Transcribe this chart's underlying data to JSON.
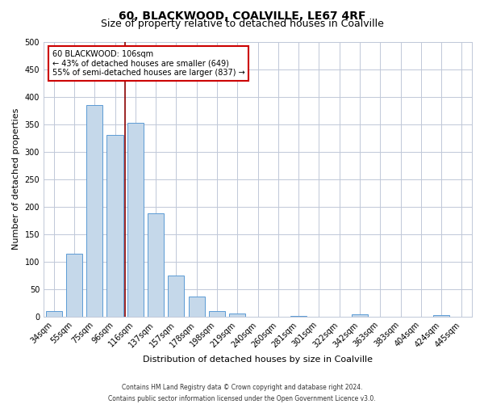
{
  "title1": "60, BLACKWOOD, COALVILLE, LE67 4RF",
  "title2": "Size of property relative to detached houses in Coalville",
  "xlabel": "Distribution of detached houses by size in Coalville",
  "ylabel": "Number of detached properties",
  "categories": [
    "34sqm",
    "55sqm",
    "75sqm",
    "96sqm",
    "116sqm",
    "137sqm",
    "157sqm",
    "178sqm",
    "198sqm",
    "219sqm",
    "240sqm",
    "260sqm",
    "281sqm",
    "301sqm",
    "322sqm",
    "342sqm",
    "363sqm",
    "383sqm",
    "404sqm",
    "424sqm",
    "445sqm"
  ],
  "values": [
    10,
    115,
    385,
    330,
    352,
    188,
    75,
    37,
    10,
    6,
    0,
    0,
    2,
    0,
    0,
    4,
    0,
    0,
    0,
    3,
    0
  ],
  "bar_color": "#c5d8ea",
  "bar_edge_color": "#5b9bd5",
  "background_color": "#ffffff",
  "grid_color": "#c0c8d8",
  "red_line_x": 3.5,
  "annotation_line1": "60 BLACKWOOD: 106sqm",
  "annotation_line2": "← 43% of detached houses are smaller (649)",
  "annotation_line3": "55% of semi-detached houses are larger (837) →",
  "red_line_color": "#8b0000",
  "annotation_box_color": "#ffffff",
  "annotation_box_edge_color": "#cc0000",
  "footer1": "Contains HM Land Registry data © Crown copyright and database right 2024.",
  "footer2": "Contains public sector information licensed under the Open Government Licence v3.0.",
  "ylim": [
    0,
    500
  ],
  "yticks": [
    0,
    50,
    100,
    150,
    200,
    250,
    300,
    350,
    400,
    450,
    500
  ],
  "title1_fontsize": 10,
  "title2_fontsize": 9,
  "xlabel_fontsize": 8,
  "ylabel_fontsize": 8,
  "tick_fontsize": 7,
  "annotation_fontsize": 7,
  "footer_fontsize": 5.5
}
